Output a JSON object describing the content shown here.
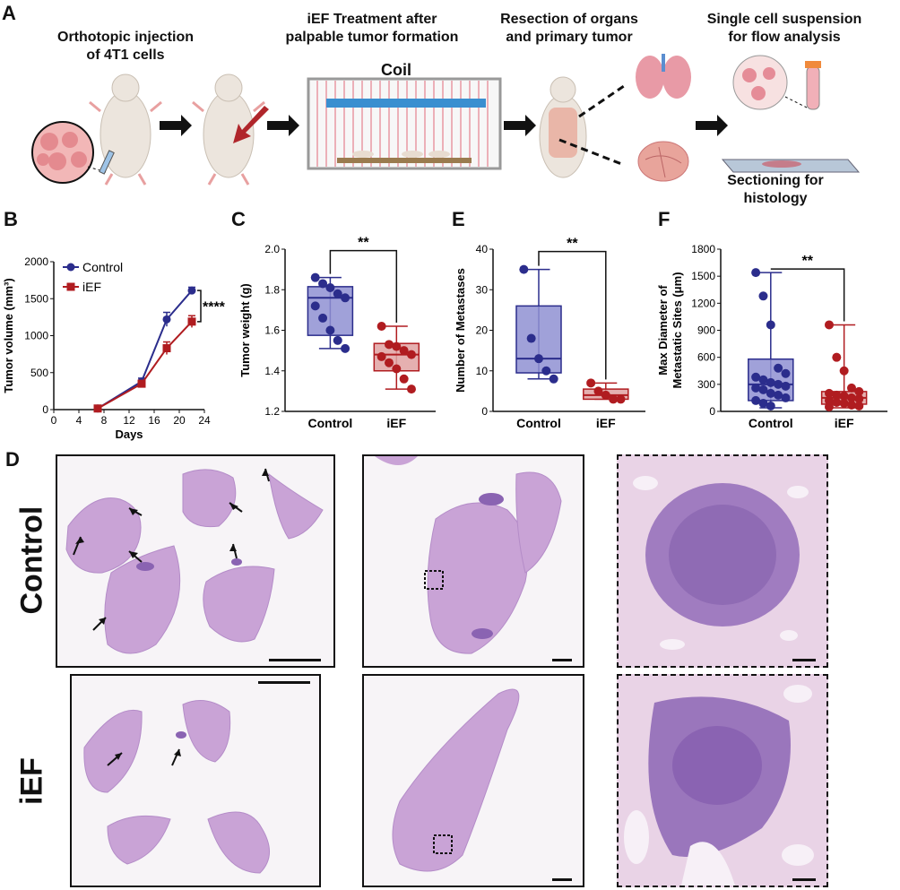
{
  "panel_labels": {
    "a": "A",
    "b": "B",
    "c": "C",
    "e": "E",
    "f": "F",
    "d": "D"
  },
  "schematic": {
    "step1": "Orthotopic injection\nof 4T1 cells",
    "step2": "iEF Treatment after\npalpable tumor formation",
    "coil_label": "Coil",
    "step3": "Resection of organs\nand primary tumor",
    "step4": "Single cell suspension\nfor flow analysis",
    "step5": "Sectioning for\nhistology"
  },
  "chart_data": [
    {
      "id": "B",
      "type": "line",
      "xlabel": "Days",
      "ylabel": "Tumor volume (mm³)",
      "xlim": [
        0,
        24
      ],
      "ylim": [
        0,
        2000
      ],
      "xticks": [
        "0",
        "4",
        "8",
        "12",
        "16",
        "20",
        "24"
      ],
      "yticks": [
        "0",
        "500",
        "1000",
        "1500",
        "2000"
      ],
      "x": [
        7,
        14,
        18,
        22
      ],
      "series": [
        {
          "name": "Control",
          "color": "#2b2d8c",
          "values": [
            15,
            380,
            1220,
            1610
          ],
          "err": [
            8,
            45,
            95,
            45
          ]
        },
        {
          "name": "iEF",
          "color": "#b01c20",
          "values": [
            15,
            350,
            830,
            1190
          ],
          "err": [
            8,
            40,
            85,
            80
          ]
        }
      ],
      "significance": "****",
      "legend_position": "top-left"
    },
    {
      "id": "C",
      "type": "box",
      "ylabel": "Tumor weight (g)",
      "ylim": [
        1.2,
        2.0
      ],
      "yticks": [
        "1.2",
        "1.4",
        "1.6",
        "1.8",
        "2.0"
      ],
      "categories": [
        "Control",
        "iEF"
      ],
      "boxes": [
        {
          "min": 1.51,
          "q1": 1.575,
          "median": 1.76,
          "q3": 1.815,
          "max": 1.86,
          "points": [
            1.86,
            1.83,
            1.81,
            1.78,
            1.76,
            1.72,
            1.66,
            1.6,
            1.55,
            1.51
          ]
        },
        {
          "min": 1.31,
          "q1": 1.4,
          "median": 1.48,
          "q3": 1.535,
          "max": 1.62,
          "points": [
            1.62,
            1.53,
            1.52,
            1.5,
            1.48,
            1.47,
            1.44,
            1.41,
            1.36,
            1.31
          ]
        }
      ],
      "significance": "**"
    },
    {
      "id": "E",
      "type": "box",
      "ylabel": "Number of Metastases",
      "ylim": [
        0,
        40
      ],
      "yticks": [
        "0",
        "10",
        "20",
        "30",
        "40"
      ],
      "categories": [
        "Control",
        "iEF"
      ],
      "boxes": [
        {
          "min": 8,
          "q1": 9.5,
          "median": 13,
          "q3": 26,
          "max": 35,
          "points": [
            35,
            18,
            13,
            10,
            8
          ]
        },
        {
          "min": 3,
          "q1": 3,
          "median": 4,
          "q3": 5.5,
          "max": 7,
          "points": [
            7,
            5,
            4,
            3,
            3
          ]
        }
      ],
      "significance": "**"
    },
    {
      "id": "F",
      "type": "box",
      "ylabel": "Max Diameter of\nMetastatic Sites (μm)",
      "ylim": [
        0,
        1800
      ],
      "yticks": [
        "0",
        "300",
        "600",
        "900",
        "1200",
        "1500",
        "1800"
      ],
      "categories": [
        "Control",
        "iEF"
      ],
      "boxes": [
        {
          "min": 40,
          "q1": 120,
          "median": 300,
          "q3": 580,
          "max": 1540,
          "points": [
            1540,
            1280,
            960,
            480,
            420,
            380,
            350,
            320,
            300,
            280,
            260,
            240,
            200,
            180,
            150,
            120,
            90,
            60
          ]
        },
        {
          "min": 40,
          "q1": 80,
          "median": 150,
          "q3": 220,
          "max": 960,
          "points": [
            960,
            600,
            450,
            260,
            220,
            200,
            180,
            170,
            150,
            140,
            120,
            100,
            90,
            70,
            60,
            50
          ]
        }
      ],
      "significance": "**"
    }
  ],
  "histology": {
    "row_labels": [
      "Control",
      "iEF"
    ]
  },
  "colors": {
    "control": "#2b2d8c",
    "iEF": "#b01c20",
    "control_fill": "#8f90d2",
    "iEF_fill": "#e1a2a2",
    "tissue": "#c9a3d6",
    "tissue_dark": "#8a63b2"
  }
}
